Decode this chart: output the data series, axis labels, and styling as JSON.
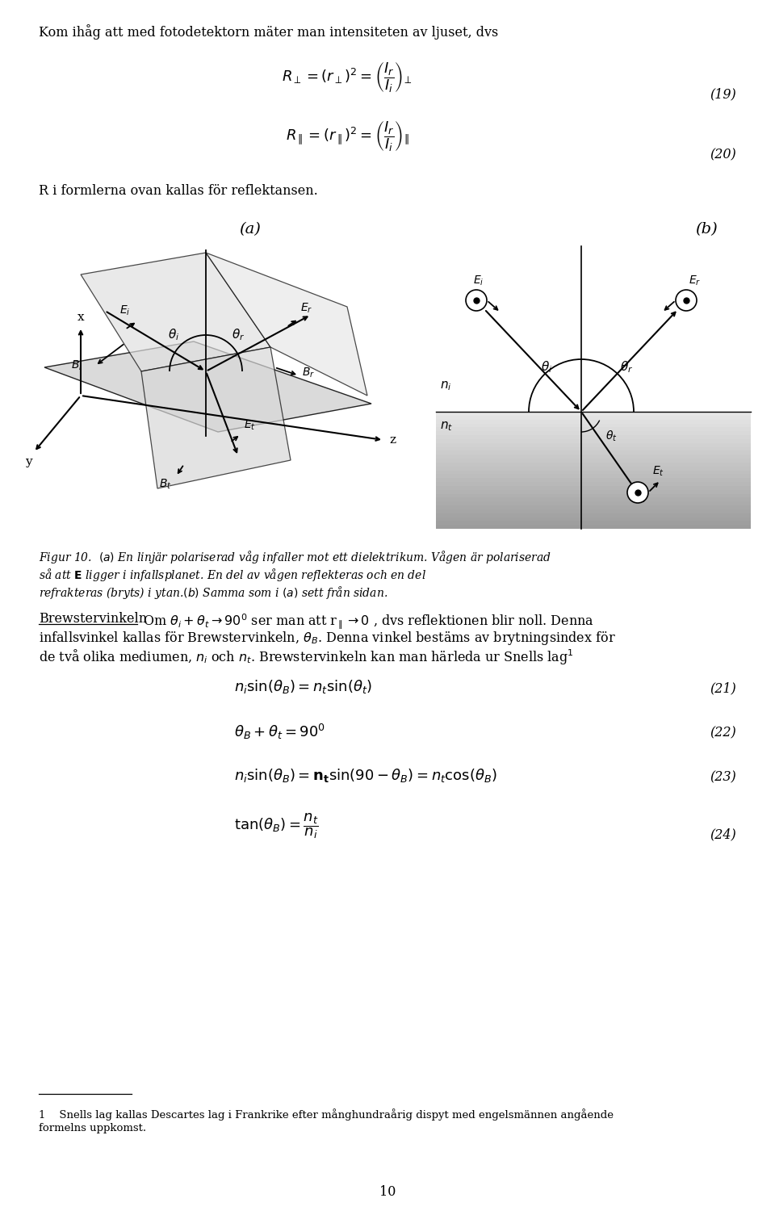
{
  "bg_color": "#ffffff",
  "page_width": 9.6,
  "page_height": 15.05,
  "fs_body": 11.5,
  "fs_small": 9.5,
  "fs_caption": 10.0,
  "fs_eq": 13.0,
  "fs_label": 14.0,
  "lm": 48,
  "rm": 912,
  "title_line": "Kom ihåg att med fotodetektorn mäter man intensiteten av ljuset, dvs",
  "eq19_label": "(19)",
  "eq20_label": "(20)",
  "eq21_label": "(21)",
  "eq22_label": "(22)",
  "eq23_label": "(23)",
  "eq24_label": "(24)",
  "page_number": "10",
  "label_a": "(a)",
  "label_b": "(b)",
  "gray_light": "#d8d8d8",
  "gray_mid": "#c0c0c0",
  "gray_dark": "#a8a8a8"
}
